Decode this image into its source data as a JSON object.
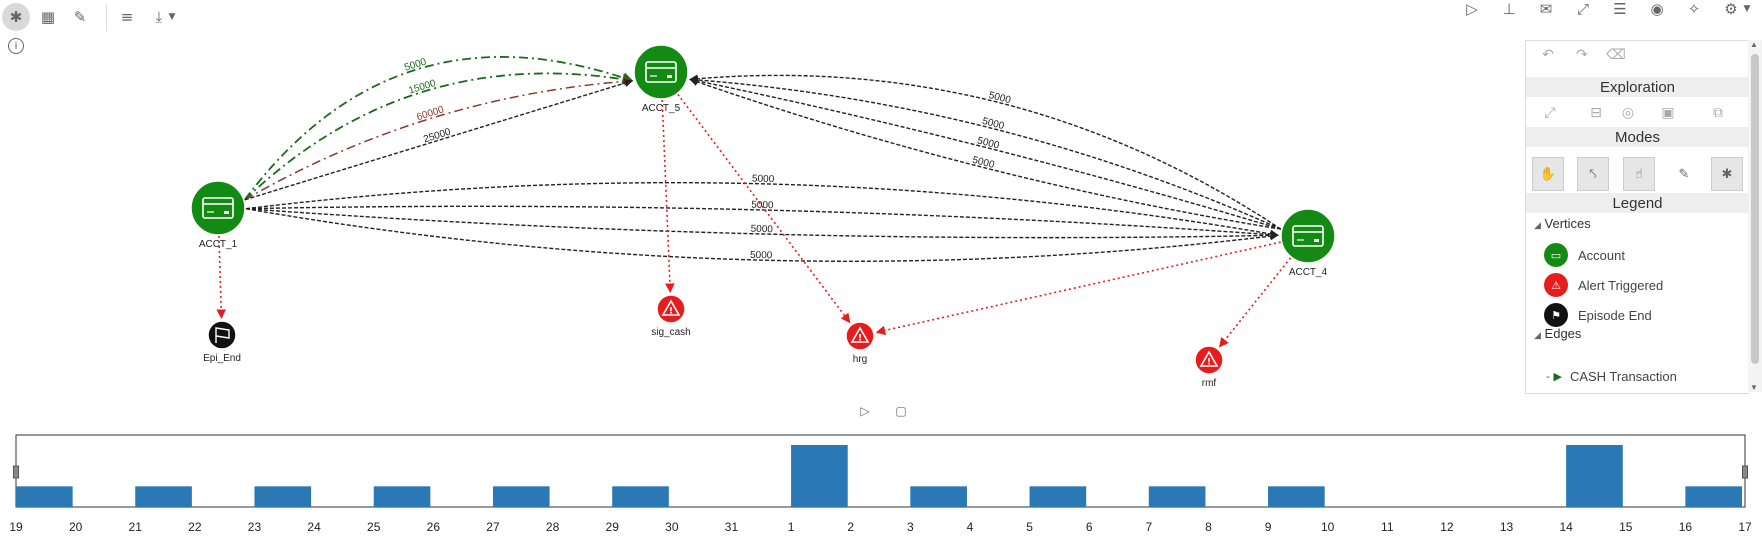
{
  "toolbar_left": [
    {
      "name": "graph-view-icon",
      "glyph": "✱"
    },
    {
      "name": "table-view-icon",
      "glyph": "▦"
    },
    {
      "name": "query-icon",
      "glyph": "✎"
    },
    {
      "name": "settings-sliders-icon",
      "glyph": "≡"
    },
    {
      "name": "download-icon",
      "glyph": "⤓"
    }
  ],
  "toolbar_right": [
    {
      "name": "run-icon",
      "glyph": "▷"
    },
    {
      "name": "hierarchy-icon",
      "glyph": "⊥"
    },
    {
      "name": "comments-icon",
      "glyph": "✉"
    },
    {
      "name": "fullscreen-icon",
      "glyph": "⤢"
    },
    {
      "name": "list-icon",
      "glyph": "☰"
    },
    {
      "name": "eye-icon",
      "glyph": "◉"
    },
    {
      "name": "magic-wand-icon",
      "glyph": "✧"
    },
    {
      "name": "gear-icon",
      "glyph": "⚙"
    }
  ],
  "panel": {
    "exploration_label": "Exploration",
    "modes_label": "Modes",
    "legend_label": "Legend",
    "vertices_label": "Vertices",
    "edges_label": "Edges",
    "legend_vertices": [
      {
        "label": "Account",
        "color": "#138a13",
        "glyph": "▭"
      },
      {
        "label": "Alert Triggered",
        "color": "#e81c1c",
        "glyph": "⚠"
      },
      {
        "label": "Episode End",
        "color": "#111111",
        "glyph": "⚑"
      }
    ],
    "legend_edges": [
      {
        "label": "CASH Transaction",
        "color": "#1b6b1b"
      }
    ]
  },
  "graph": {
    "vertices": [
      {
        "id": "ACCT_1",
        "label": "ACCT_1",
        "type": "account"
      },
      {
        "id": "ACCT_5",
        "label": "ACCT_5",
        "type": "account"
      },
      {
        "id": "ACCT_4",
        "label": "ACCT_4",
        "type": "account"
      },
      {
        "id": "Epi_End",
        "label": "Epi_End",
        "type": "episode"
      },
      {
        "id": "sig_cash",
        "label": "sig_cash",
        "type": "alert"
      },
      {
        "id": "hrg",
        "label": "hrg",
        "type": "alert"
      },
      {
        "id": "rmf",
        "label": "rmf",
        "type": "alert"
      }
    ],
    "edges": [
      {
        "from": "ACCT_1",
        "to": "ACCT_5",
        "label": "5000",
        "style": "cash"
      },
      {
        "from": "ACCT_1",
        "to": "ACCT_5",
        "label": "15000",
        "style": "cash"
      },
      {
        "from": "ACCT_1",
        "to": "ACCT_5",
        "label": "60000",
        "style": "wire"
      },
      {
        "from": "ACCT_1",
        "to": "ACCT_5",
        "label": "25000",
        "style": "transfer"
      },
      {
        "from": "ACCT_4",
        "to": "ACCT_5",
        "label": "5000",
        "style": "transfer"
      },
      {
        "from": "ACCT_4",
        "to": "ACCT_5",
        "label": "5000",
        "style": "transfer"
      },
      {
        "from": "ACCT_4",
        "to": "ACCT_5",
        "label": "5000",
        "style": "transfer"
      },
      {
        "from": "ACCT_4",
        "to": "ACCT_5",
        "label": "5000",
        "style": "transfer"
      },
      {
        "from": "ACCT_1",
        "to": "ACCT_4",
        "label": "5000",
        "style": "transfer"
      },
      {
        "from": "ACCT_1",
        "to": "ACCT_4",
        "label": "5000",
        "style": "transfer"
      },
      {
        "from": "ACCT_1",
        "to": "ACCT_4",
        "label": "5000",
        "style": "transfer"
      },
      {
        "from": "ACCT_1",
        "to": "ACCT_4",
        "label": "5000",
        "style": "transfer"
      },
      {
        "from": "ACCT_1",
        "to": "Epi_End",
        "label": "",
        "style": "alert"
      },
      {
        "from": "ACCT_5",
        "to": "sig_cash",
        "label": "",
        "style": "alert"
      },
      {
        "from": "ACCT_5",
        "to": "hrg",
        "label": "",
        "style": "alert"
      },
      {
        "from": "ACCT_4",
        "to": "hrg",
        "label": "",
        "style": "alert"
      },
      {
        "from": "ACCT_4",
        "to": "rmf",
        "label": "",
        "style": "alert"
      }
    ],
    "colors": {
      "account": "#138a13",
      "alert": "#e81c1c",
      "episode": "#111111",
      "cash": "#1b6b1b",
      "wire": "#8b3a2a",
      "transfer": "#222222",
      "alert_edge": "#e81c1c"
    }
  },
  "chart_data": {
    "type": "bar",
    "categories": [
      "19",
      "20",
      "21",
      "22",
      "23",
      "24",
      "25",
      "26",
      "27",
      "28",
      "29",
      "30",
      "31",
      "1",
      "2",
      "3",
      "4",
      "5",
      "6",
      "7",
      "8",
      "9",
      "10",
      "11",
      "12",
      "13",
      "14",
      "15",
      "16",
      "17"
    ],
    "values": [
      1,
      0,
      1,
      0,
      1,
      0,
      1,
      0,
      1,
      0,
      1,
      0,
      0,
      3,
      0,
      1,
      0,
      1,
      0,
      1,
      0,
      1,
      0,
      0,
      0,
      0,
      3,
      0,
      1,
      0
    ],
    "bar_color": "#2a78b4",
    "xlabel": "",
    "ylabel": ""
  }
}
